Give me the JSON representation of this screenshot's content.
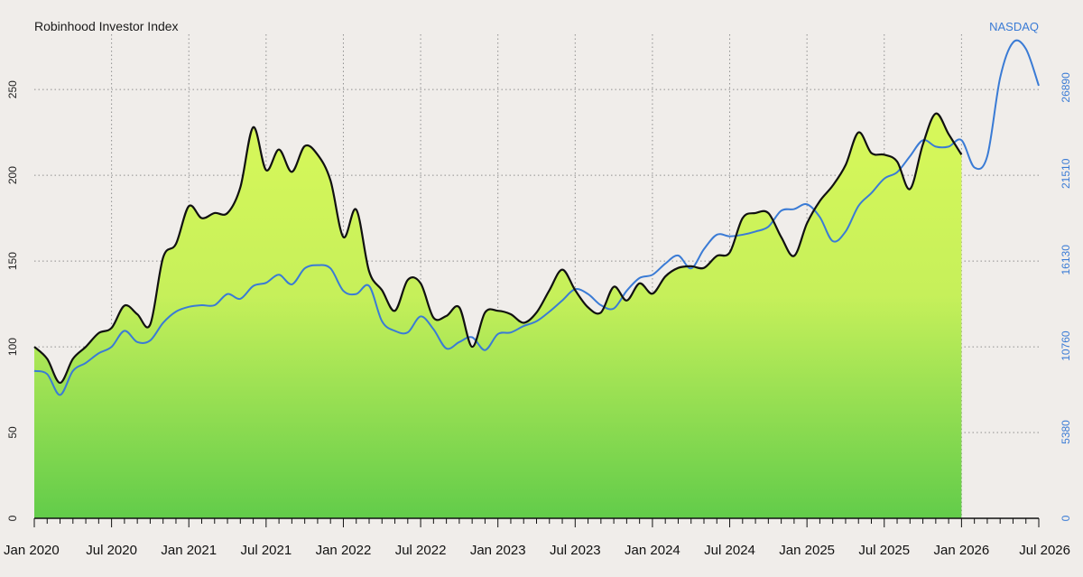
{
  "chart_data": {
    "type": "area",
    "title": "Robinhood Investor Index",
    "x_range": [
      "2020-01",
      "2026-07"
    ],
    "x_ticks": [
      "Jan 2020",
      "Jul 2020",
      "Jan 2021",
      "Jul 2021",
      "Jan 2022",
      "Jul 2022",
      "Jan 2023",
      "Jul 2023",
      "Jan 2024",
      "Jul 2024",
      "Jan 2025",
      "Jul 2025",
      "Jan 2026",
      "Jul 2026"
    ],
    "y_left": {
      "ticks": [
        0,
        50,
        100,
        150,
        200,
        250
      ],
      "range": [
        0,
        298
      ]
    },
    "y_right": {
      "ticks": [
        0,
        5380,
        10760,
        16130,
        21510,
        26890
      ],
      "range": [
        0,
        31900
      ]
    },
    "grid": true,
    "series": [
      {
        "name": "",
        "axis": "left",
        "color": "#111111",
        "fill_top": "#d8f85a",
        "fill_bottom": "#62cc4a",
        "points": [
          [
            "2020-01",
            100
          ],
          [
            "2020-02",
            93
          ],
          [
            "2020-03",
            79
          ],
          [
            "2020-04",
            93
          ],
          [
            "2020-05",
            100
          ],
          [
            "2020-06",
            108
          ],
          [
            "2020-07",
            111
          ],
          [
            "2020-08",
            124
          ],
          [
            "2020-09",
            119
          ],
          [
            "2020-10",
            113
          ],
          [
            "2020-11",
            152
          ],
          [
            "2020-12",
            160
          ],
          [
            "2021-01",
            182
          ],
          [
            "2021-02",
            175
          ],
          [
            "2021-03",
            178
          ],
          [
            "2021-04",
            178
          ],
          [
            "2021-05",
            193
          ],
          [
            "2021-06",
            228
          ],
          [
            "2021-07",
            203
          ],
          [
            "2021-08",
            215
          ],
          [
            "2021-09",
            202
          ],
          [
            "2021-10",
            217
          ],
          [
            "2021-11",
            212
          ],
          [
            "2021-12",
            197
          ],
          [
            "2022-01",
            164
          ],
          [
            "2022-02",
            180
          ],
          [
            "2022-03",
            144
          ],
          [
            "2022-04",
            133
          ],
          [
            "2022-05",
            121
          ],
          [
            "2022-06",
            139
          ],
          [
            "2022-07",
            137
          ],
          [
            "2022-08",
            117
          ],
          [
            "2022-09",
            118
          ],
          [
            "2022-10",
            123
          ],
          [
            "2022-11",
            100
          ],
          [
            "2022-12",
            120
          ],
          [
            "2023-01",
            121
          ],
          [
            "2023-02",
            119
          ],
          [
            "2023-03",
            114
          ],
          [
            "2023-04",
            120
          ],
          [
            "2023-05",
            133
          ],
          [
            "2023-06",
            145
          ],
          [
            "2023-07",
            133
          ],
          [
            "2023-08",
            123
          ],
          [
            "2023-09",
            120
          ],
          [
            "2023-10",
            135
          ],
          [
            "2023-11",
            127
          ],
          [
            "2023-12",
            137
          ],
          [
            "2024-01",
            131
          ],
          [
            "2024-02",
            141
          ],
          [
            "2024-03",
            146
          ],
          [
            "2024-04",
            147
          ],
          [
            "2024-05",
            146
          ],
          [
            "2024-06",
            153
          ],
          [
            "2024-07",
            155
          ],
          [
            "2024-08",
            175
          ],
          [
            "2024-09",
            178
          ],
          [
            "2024-10",
            178
          ],
          [
            "2024-11",
            164
          ],
          [
            "2024-12",
            153
          ],
          [
            "2025-01",
            172
          ],
          [
            "2025-02",
            185
          ],
          [
            "2025-03",
            194
          ],
          [
            "2025-04",
            206
          ],
          [
            "2025-05",
            225
          ],
          [
            "2025-06",
            213
          ],
          [
            "2025-07",
            212
          ],
          [
            "2025-08",
            208
          ],
          [
            "2025-09",
            192
          ],
          [
            "2025-10",
            218
          ],
          [
            "2025-11",
            236
          ],
          [
            "2025-12",
            224
          ],
          [
            "2026-01",
            212
          ]
        ]
      },
      {
        "name": "NASDAQ",
        "axis": "right",
        "color": "#3a7bd5",
        "points": [
          [
            "2020-01",
            9200
          ],
          [
            "2020-02",
            9000
          ],
          [
            "2020-03",
            7700
          ],
          [
            "2020-04",
            9200
          ],
          [
            "2020-05",
            9700
          ],
          [
            "2020-06",
            10300
          ],
          [
            "2020-07",
            10700
          ],
          [
            "2020-08",
            11700
          ],
          [
            "2020-09",
            11000
          ],
          [
            "2020-10",
            11100
          ],
          [
            "2020-11",
            12200
          ],
          [
            "2020-12",
            12900
          ],
          [
            "2021-01",
            13200
          ],
          [
            "2021-02",
            13300
          ],
          [
            "2021-03",
            13300
          ],
          [
            "2021-04",
            14000
          ],
          [
            "2021-05",
            13700
          ],
          [
            "2021-06",
            14500
          ],
          [
            "2021-07",
            14700
          ],
          [
            "2021-08",
            15200
          ],
          [
            "2021-09",
            14600
          ],
          [
            "2021-10",
            15600
          ],
          [
            "2021-11",
            15800
          ],
          [
            "2021-12",
            15600
          ],
          [
            "2022-01",
            14200
          ],
          [
            "2022-02",
            14000
          ],
          [
            "2022-03",
            14500
          ],
          [
            "2022-04",
            12300
          ],
          [
            "2022-05",
            11700
          ],
          [
            "2022-06",
            11600
          ],
          [
            "2022-07",
            12600
          ],
          [
            "2022-08",
            11800
          ],
          [
            "2022-09",
            10600
          ],
          [
            "2022-10",
            11000
          ],
          [
            "2022-11",
            11300
          ],
          [
            "2022-12",
            10500
          ],
          [
            "2023-01",
            11500
          ],
          [
            "2023-02",
            11600
          ],
          [
            "2023-03",
            12000
          ],
          [
            "2023-04",
            12300
          ],
          [
            "2023-05",
            12900
          ],
          [
            "2023-06",
            13600
          ],
          [
            "2023-07",
            14300
          ],
          [
            "2023-08",
            14000
          ],
          [
            "2023-09",
            13300
          ],
          [
            "2023-10",
            13100
          ],
          [
            "2023-11",
            14200
          ],
          [
            "2023-12",
            15000
          ],
          [
            "2024-01",
            15200
          ],
          [
            "2024-02",
            15900
          ],
          [
            "2024-03",
            16400
          ],
          [
            "2024-04",
            15600
          ],
          [
            "2024-05",
            16800
          ],
          [
            "2024-06",
            17700
          ],
          [
            "2024-07",
            17600
          ],
          [
            "2024-08",
            17700
          ],
          [
            "2024-09",
            17900
          ],
          [
            "2024-10",
            18200
          ],
          [
            "2024-11",
            19200
          ],
          [
            "2024-12",
            19300
          ],
          [
            "2025-01",
            19600
          ],
          [
            "2025-02",
            18800
          ],
          [
            "2025-03",
            17300
          ],
          [
            "2025-04",
            17900
          ],
          [
            "2025-05",
            19500
          ],
          [
            "2025-06",
            20300
          ],
          [
            "2025-07",
            21200
          ],
          [
            "2025-08",
            21600
          ],
          [
            "2025-09",
            22600
          ],
          [
            "2025-10",
            23600
          ],
          [
            "2025-11",
            23200
          ],
          [
            "2025-12",
            23200
          ],
          [
            "2026-01",
            23600
          ],
          [
            "2026-02",
            21900
          ],
          [
            "2026-03",
            22600
          ],
          [
            "2026-04",
            27500
          ],
          [
            "2026-05",
            29700
          ],
          [
            "2026-06",
            29300
          ],
          [
            "2026-07",
            27000
          ]
        ]
      }
    ]
  }
}
